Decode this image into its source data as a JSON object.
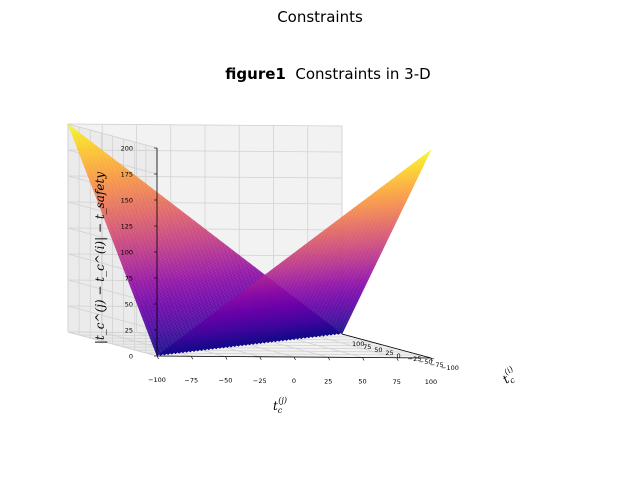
{
  "figure": {
    "suptitle": "Constraints",
    "title_bold": "figure1",
    "title_rest": "  Constraints in 3-D"
  },
  "chart_data": {
    "type": "surface3d",
    "x": {
      "label": "t_c^(j)",
      "range": [
        -100,
        100
      ],
      "ticks": [
        -100,
        -75,
        -50,
        -25,
        0,
        25,
        50,
        75,
        100
      ]
    },
    "y": {
      "label": "t_c^(i)",
      "range": [
        -100,
        100
      ],
      "ticks": [
        -100,
        -75,
        -50,
        -25,
        0,
        25,
        50,
        75,
        100
      ]
    },
    "z": {
      "label": "|t_c^(j) − t_c^(i)| − t_safety",
      "range": [
        0,
        200
      ],
      "ticks": [
        0,
        25,
        50,
        75,
        100,
        125,
        150,
        175,
        200
      ]
    },
    "function": "|x - y|",
    "colormap": "plasma",
    "grid": true,
    "surface_min_z": 0,
    "surface_max_z": 200
  }
}
